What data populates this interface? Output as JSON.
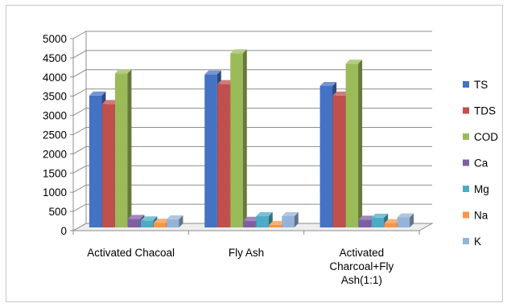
{
  "chart_data": {
    "type": "bar",
    "title": "",
    "xlabel": "",
    "ylabel": "",
    "ylim": [
      0,
      5000
    ],
    "yticks": [
      0,
      500,
      1000,
      1500,
      2000,
      2500,
      3000,
      3500,
      4000,
      4500,
      5000
    ],
    "grid": true,
    "style": "3d-clustered-column",
    "legend_position": "right",
    "categories": [
      [
        "Activated Chacoal"
      ],
      [
        "Fly Ash"
      ],
      [
        "Activated",
        "Charcoal+Fly",
        "Ash(1:1)"
      ]
    ],
    "series": [
      {
        "name": "TS",
        "color": "#4472c4",
        "values": [
          3600,
          4150,
          3850
        ]
      },
      {
        "name": "TDS",
        "color": "#c0504d",
        "values": [
          3380,
          3900,
          3600
        ]
      },
      {
        "name": "COD",
        "color": "#9bbb59",
        "values": [
          4180,
          4700,
          4430
        ]
      },
      {
        "name": "Ca",
        "color": "#7f5fa3",
        "values": [
          390,
          340,
          370
        ]
      },
      {
        "name": "Mg",
        "color": "#4bacc6",
        "values": [
          350,
          460,
          420
        ]
      },
      {
        "name": "Na",
        "color": "#f79646",
        "values": [
          290,
          230,
          280
        ]
      },
      {
        "name": "K",
        "color": "#95b3d7",
        "values": [
          380,
          460,
          430
        ]
      }
    ]
  }
}
